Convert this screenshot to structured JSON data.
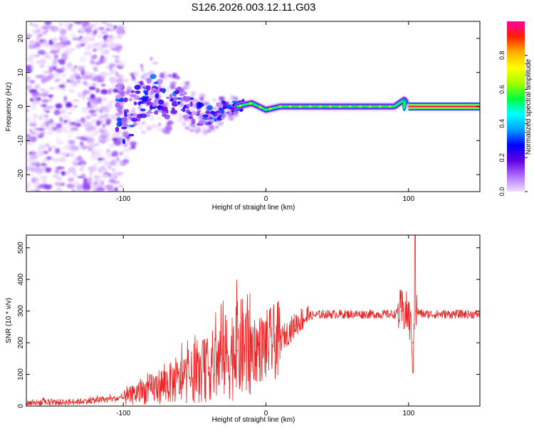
{
  "title": "S126.2026.003.12.11.G03",
  "chart_data": [
    {
      "type": "heatmap",
      "title": "S126.2026.003.12.11.G03",
      "xlabel": "Height of straight line (km)",
      "ylabel": "Frequency (Hz)",
      "xlim": [
        -168,
        150
      ],
      "ylim": [
        -25,
        25
      ],
      "x_ticks": [
        -100,
        0,
        100
      ],
      "y_ticks": [
        -20,
        -10,
        0,
        10,
        20
      ],
      "colorbar": {
        "label": "Normalized spectral amplitude",
        "range": [
          0.0,
          1.0
        ],
        "ticks": [
          "0.0",
          "0.2",
          "0.4",
          "0.6",
          "0.8"
        ],
        "colors": [
          "#f0e0ff",
          "#b070ff",
          "#6000e0",
          "#0000ff",
          "#00a0ff",
          "#00ffff",
          "#00ff40",
          "#a0ff00",
          "#ffff00",
          "#ffb000",
          "#ff2000",
          "#ff00a0"
        ]
      },
      "ridge": [
        {
          "x": -100,
          "f": -5
        },
        {
          "x": -90,
          "f": 0
        },
        {
          "x": -80,
          "f": 4
        },
        {
          "x": -70,
          "f": 1
        },
        {
          "x": -60,
          "f": 2
        },
        {
          "x": -50,
          "f": -2
        },
        {
          "x": -40,
          "f": -3
        },
        {
          "x": -30,
          "f": -1
        },
        {
          "x": -20,
          "f": 0
        },
        {
          "x": -10,
          "f": 1
        },
        {
          "x": 0,
          "f": -1
        },
        {
          "x": 10,
          "f": 0
        },
        {
          "x": 50,
          "f": 0
        },
        {
          "x": 90,
          "f": 0
        },
        {
          "x": 97,
          "f": 2
        },
        {
          "x": 100,
          "f": 0
        },
        {
          "x": 150,
          "f": 0
        }
      ]
    },
    {
      "type": "line",
      "xlabel": "Height of straight line (km)",
      "ylabel": "SNR (10 * v/v)",
      "xlim": [
        -168,
        150
      ],
      "ylim": [
        0,
        540
      ],
      "x_ticks": [
        -100,
        0,
        100
      ],
      "y_ticks": [
        0,
        100,
        200,
        300,
        400,
        500
      ],
      "line_color": "#ee2222",
      "series": [
        {
          "name": "SNR",
          "points": [
            {
              "x": -168,
              "y": 10
            },
            {
              "x": -140,
              "y": 12
            },
            {
              "x": -120,
              "y": 18
            },
            {
              "x": -100,
              "y": 25
            },
            {
              "x": -90,
              "y": 40
            },
            {
              "x": -80,
              "y": 55
            },
            {
              "x": -70,
              "y": 70
            },
            {
              "x": -60,
              "y": 80
            },
            {
              "x": -50,
              "y": 95
            },
            {
              "x": -40,
              "y": 120
            },
            {
              "x": -30,
              "y": 150
            },
            {
              "x": -20,
              "y": 175
            },
            {
              "x": -15,
              "y": 185
            },
            {
              "x": -10,
              "y": 190
            },
            {
              "x": -5,
              "y": 180
            },
            {
              "x": 0,
              "y": 190
            },
            {
              "x": 5,
              "y": 200
            },
            {
              "x": 10,
              "y": 210
            },
            {
              "x": 15,
              "y": 230
            },
            {
              "x": 20,
              "y": 255
            },
            {
              "x": 25,
              "y": 275
            },
            {
              "x": 30,
              "y": 285
            },
            {
              "x": 40,
              "y": 290
            },
            {
              "x": 60,
              "y": 290
            },
            {
              "x": 80,
              "y": 290
            },
            {
              "x": 90,
              "y": 290
            },
            {
              "x": 95,
              "y": 300
            },
            {
              "x": 100,
              "y": 290
            },
            {
              "x": 103,
              "y": 200
            },
            {
              "x": 105,
              "y": 300
            },
            {
              "x": 110,
              "y": 290
            },
            {
              "x": 130,
              "y": 290
            },
            {
              "x": 150,
              "y": 290
            }
          ]
        }
      ]
    }
  ]
}
